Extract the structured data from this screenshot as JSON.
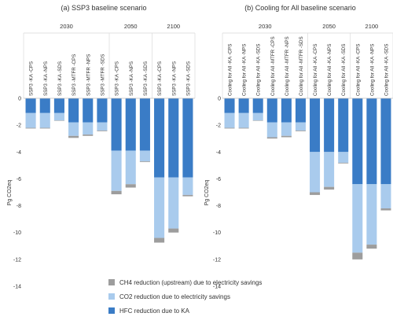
{
  "colors": {
    "hfc": "#3a7cc6",
    "co2": "#a9cbed",
    "ch4": "#9d9d9d",
    "axis": "#bfbfbf",
    "grid": "#d9d9d9",
    "text": "#333333"
  },
  "legend": {
    "ch4": "CH4 reduction (upstream) due to electricity savings",
    "co2": "CO2 reduction due to electricity savings",
    "hfc": "HFC reduction due to KA"
  },
  "chart_data": [
    {
      "type": "bar",
      "stacked": true,
      "title": "(a) SSP3 baseline scenario",
      "ylabel": "Pg CO2eq",
      "ylim": [
        -14,
        0
      ],
      "yticks": [
        0,
        -2,
        -4,
        -6,
        -8,
        -10,
        -12,
        -14
      ],
      "groups": [
        {
          "label": "2030",
          "categories": [
            "SSP3 -KA -CPS",
            "SSP3 -KA -NPS",
            "SSP3 -KA -SDS",
            "SSP3 -MTFR -CPS",
            "SSP3 -MTFR -NPS",
            "SSP3 -MTFR -SDS"
          ]
        },
        {
          "label": "2050",
          "categories": [
            "SSP3 -KA -CPS",
            "SSP3 -KA -NPS",
            "SSP3 -KA -SDS"
          ]
        },
        {
          "label": "2100",
          "categories": [
            "SSP3 -KA -CPS",
            "SSP3 -KA -NPS",
            "SSP3 -KA -SDS"
          ]
        }
      ],
      "series": [
        {
          "name": "HFC reduction due to KA",
          "values": [
            -1.1,
            -1.1,
            -1.1,
            -1.8,
            -1.8,
            -1.8,
            -3.9,
            -3.9,
            -3.9,
            -5.9,
            -5.9,
            -5.9
          ]
        },
        {
          "name": "CO2 reduction due to electricity savings",
          "values": [
            -1.1,
            -1.1,
            -0.55,
            -1.0,
            -0.9,
            -0.6,
            -3.0,
            -2.5,
            -0.8,
            -4.5,
            -3.8,
            -1.3
          ]
        },
        {
          "name": "CH4 reduction (upstream) due to electricity savings",
          "values": [
            -0.05,
            -0.05,
            -0.03,
            -0.15,
            -0.1,
            -0.05,
            -0.25,
            -0.25,
            -0.05,
            -0.35,
            -0.3,
            -0.1
          ]
        }
      ]
    },
    {
      "type": "bar",
      "stacked": true,
      "title": "(b) Cooling for All baseline scenario",
      "ylabel": "Pg CO2eq",
      "ylim": [
        -14,
        0
      ],
      "yticks": [
        0,
        -2,
        -4,
        -6,
        -8,
        -10,
        -12,
        -14
      ],
      "groups": [
        {
          "label": "2030",
          "categories": [
            "Cooling for All -KA -CPS",
            "Cooling for All -KA -NPS",
            "Cooling for All -KA -SDS",
            "Cooling for All -MTFR -CPS",
            "Cooling for All -MTFR -NPS",
            "Cooling for All -MTFR -SDS"
          ]
        },
        {
          "label": "2050",
          "categories": [
            "Cooling for All -KA -CPS",
            "Cooling for All -KA -NPS",
            "Cooling for All -KA -SDS"
          ]
        },
        {
          "label": "2100",
          "categories": [
            "Cooling for All -KA -CPS",
            "Cooling for All -KA -NPS",
            "Cooling for All -KA -SDS"
          ]
        }
      ],
      "series": [
        {
          "name": "HFC reduction due to KA",
          "values": [
            -1.1,
            -1.1,
            -1.1,
            -1.8,
            -1.8,
            -1.8,
            -4.0,
            -4.0,
            -4.0,
            -6.4,
            -6.4,
            -6.4
          ]
        },
        {
          "name": "CO2 reduction due to electricity savings",
          "values": [
            -1.1,
            -1.1,
            -0.55,
            -1.1,
            -1.0,
            -0.6,
            -3.0,
            -2.6,
            -0.8,
            -5.1,
            -4.5,
            -1.8
          ]
        },
        {
          "name": "CH4 reduction (upstream) due to electricity savings",
          "values": [
            -0.05,
            -0.05,
            -0.03,
            -0.1,
            -0.1,
            -0.05,
            -0.2,
            -0.2,
            -0.05,
            -0.5,
            -0.3,
            -0.15
          ]
        }
      ]
    }
  ]
}
